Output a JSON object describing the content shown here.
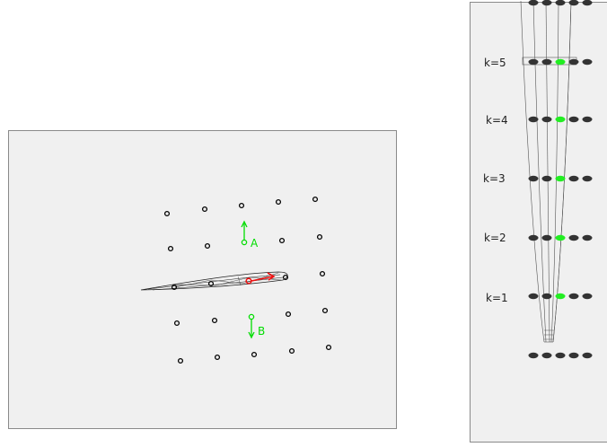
{
  "left_view": {
    "vector_labels": {
      "upper": "A",
      "lower": "B"
    },
    "colors": {
      "green": "#00dd00",
      "red": "#ee1111",
      "points": "#000000"
    }
  },
  "right_view": {
    "levels": [
      "k=5",
      "k=4",
      "k=3",
      "k=2",
      "k=1"
    ],
    "colors": {
      "highlight": "#22ee22",
      "dot": "#333333"
    }
  }
}
